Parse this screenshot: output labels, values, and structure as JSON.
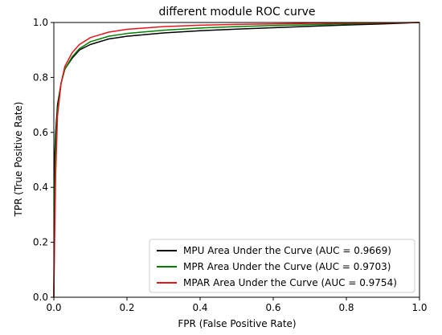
{
  "chart_data": {
    "type": "line",
    "title": "different module ROC curve",
    "xlabel": "FPR (False Positive Rate)",
    "ylabel": "TPR (True Positive Rate)",
    "xlim": [
      0.0,
      1.0
    ],
    "ylim": [
      0.0,
      1.0
    ],
    "xticks": [
      "0.0",
      "0.2",
      "0.4",
      "0.6",
      "0.8",
      "1.0"
    ],
    "yticks": [
      "0.0",
      "0.2",
      "0.4",
      "0.6",
      "0.8",
      "1.0"
    ],
    "grid": false,
    "legend_position": "lower-right",
    "series": [
      {
        "name": "MPU Area Under the Curve (AUC = 0.9669)",
        "color": "#000000",
        "x": [
          0,
          0.002,
          0.005,
          0.01,
          0.02,
          0.03,
          0.05,
          0.07,
          0.1,
          0.15,
          0.2,
          0.3,
          0.4,
          0.5,
          0.6,
          0.7,
          0.8,
          0.9,
          1.0
        ],
        "y": [
          0,
          0.5,
          0.6,
          0.7,
          0.78,
          0.83,
          0.87,
          0.9,
          0.92,
          0.94,
          0.95,
          0.962,
          0.97,
          0.976,
          0.981,
          0.986,
          0.991,
          0.995,
          1.0
        ]
      },
      {
        "name": "MPR Area Under the Curve (AUC = 0.9703)",
        "color": "#008000",
        "x": [
          0,
          0.002,
          0.005,
          0.01,
          0.02,
          0.03,
          0.05,
          0.07,
          0.1,
          0.15,
          0.2,
          0.3,
          0.4,
          0.5,
          0.6,
          0.7,
          0.8,
          0.9,
          1.0
        ],
        "y": [
          0,
          0.35,
          0.55,
          0.68,
          0.78,
          0.83,
          0.875,
          0.905,
          0.93,
          0.95,
          0.96,
          0.972,
          0.98,
          0.985,
          0.989,
          0.992,
          0.995,
          0.998,
          1.0
        ]
      },
      {
        "name": "MPAR Area Under the Curve (AUC = 0.9754)",
        "color": "#e8141c",
        "x": [
          0,
          0.002,
          0.005,
          0.01,
          0.02,
          0.03,
          0.05,
          0.07,
          0.1,
          0.15,
          0.2,
          0.3,
          0.4,
          0.5,
          0.6,
          0.7,
          0.8,
          0.9,
          1.0
        ],
        "y": [
          0,
          0.2,
          0.45,
          0.66,
          0.78,
          0.84,
          0.89,
          0.92,
          0.945,
          0.965,
          0.975,
          0.985,
          0.99,
          0.993,
          0.995,
          0.997,
          0.998,
          0.999,
          1.0
        ]
      }
    ]
  }
}
